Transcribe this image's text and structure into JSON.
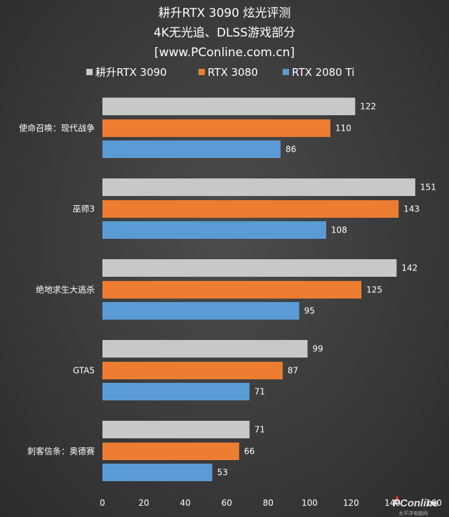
{
  "chart_data": {
    "type": "bar",
    "orientation": "horizontal",
    "title": [
      "耕升RTX 3090 炫光评测",
      "4K无光追、DLSS游戏部分",
      "[www.PConline.com.cn]"
    ],
    "categories": [
      "使命召唤：现代战争",
      "巫师3",
      "绝地求生大逃杀",
      "GTA5",
      "刺客信条：奥德赛"
    ],
    "series": [
      {
        "name": "耕升RTX 3090",
        "color": "#c8c8c8",
        "values": [
          122,
          151,
          142,
          99,
          71
        ]
      },
      {
        "name": "RTX 3080",
        "color": "#ed7d31",
        "values": [
          110,
          143,
          125,
          87,
          66
        ]
      },
      {
        "name": "RTX 2080 Ti",
        "color": "#5b9bd5",
        "values": [
          86,
          108,
          95,
          71,
          53
        ]
      }
    ],
    "xlim": [
      0,
      160
    ],
    "xticks": [
      0,
      20,
      40,
      60,
      80,
      100,
      120,
      140,
      160
    ],
    "legend_position": "top",
    "grid": false
  },
  "watermark": {
    "brand": "PConline",
    "tagline": "太平洋电脑网",
    "accent": "#e8322c"
  }
}
